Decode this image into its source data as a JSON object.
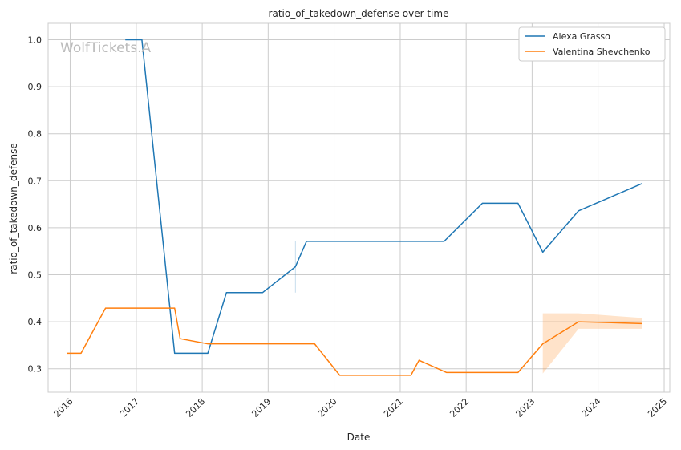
{
  "chart_data": {
    "type": "line",
    "title": "ratio_of_takedown_defense over time",
    "xlabel": "Date",
    "ylabel": "ratio_of_takedown_defense",
    "watermark": "WolfTickets.A",
    "x_ticks": [
      "2016",
      "2017",
      "2018",
      "2019",
      "2020",
      "2021",
      "2022",
      "2023",
      "2024",
      "2025"
    ],
    "y_ticks": [
      "0.3",
      "0.4",
      "0.5",
      "0.6",
      "0.7",
      "0.8",
      "0.9",
      "1.0"
    ],
    "xlim": [
      "2015-09-01",
      "2025-02-01"
    ],
    "ylim": [
      0.25,
      1.035
    ],
    "grid": true,
    "legend_position": "top-right",
    "series": [
      {
        "name": "Alexa Grasso",
        "color": "#1f77b4",
        "points": [
          [
            "2016-11-01",
            1.0
          ],
          [
            "2017-02-01",
            1.0
          ],
          [
            "2017-08-01",
            0.333
          ],
          [
            "2018-02-01",
            0.333
          ],
          [
            "2018-05-15",
            0.462
          ],
          [
            "2018-12-01",
            0.462
          ],
          [
            "2019-06-01",
            0.517
          ],
          [
            "2019-08-01",
            0.571
          ],
          [
            "2021-09-01",
            0.571
          ],
          [
            "2022-04-01",
            0.652
          ],
          [
            "2022-10-15",
            0.652
          ],
          [
            "2023-03-01",
            0.548
          ],
          [
            "2023-09-15",
            0.636
          ],
          [
            "2024-09-01",
            0.694
          ]
        ],
        "band": [
          [
            "2019-06-01",
            0.462,
            0.571
          ]
        ]
      },
      {
        "name": "Valentina Shevchenko",
        "color": "#ff7f0e",
        "points": [
          [
            "2015-12-15",
            0.333
          ],
          [
            "2016-03-01",
            0.333
          ],
          [
            "2016-07-15",
            0.429
          ],
          [
            "2017-08-01",
            0.429
          ],
          [
            "2017-09-01",
            0.364
          ],
          [
            "2018-02-01",
            0.353
          ],
          [
            "2019-09-15",
            0.353
          ],
          [
            "2020-02-01",
            0.286
          ],
          [
            "2021-03-01",
            0.286
          ],
          [
            "2021-04-15",
            0.318
          ],
          [
            "2021-09-15",
            0.292
          ],
          [
            "2022-10-15",
            0.292
          ],
          [
            "2023-03-01",
            0.353
          ],
          [
            "2023-09-15",
            0.4
          ],
          [
            "2024-09-01",
            0.396
          ]
        ],
        "band": [
          [
            "2023-03-01",
            0.29,
            0.418
          ],
          [
            "2023-09-15",
            0.385,
            0.418
          ],
          [
            "2024-09-01",
            0.385,
            0.408
          ]
        ]
      }
    ]
  }
}
